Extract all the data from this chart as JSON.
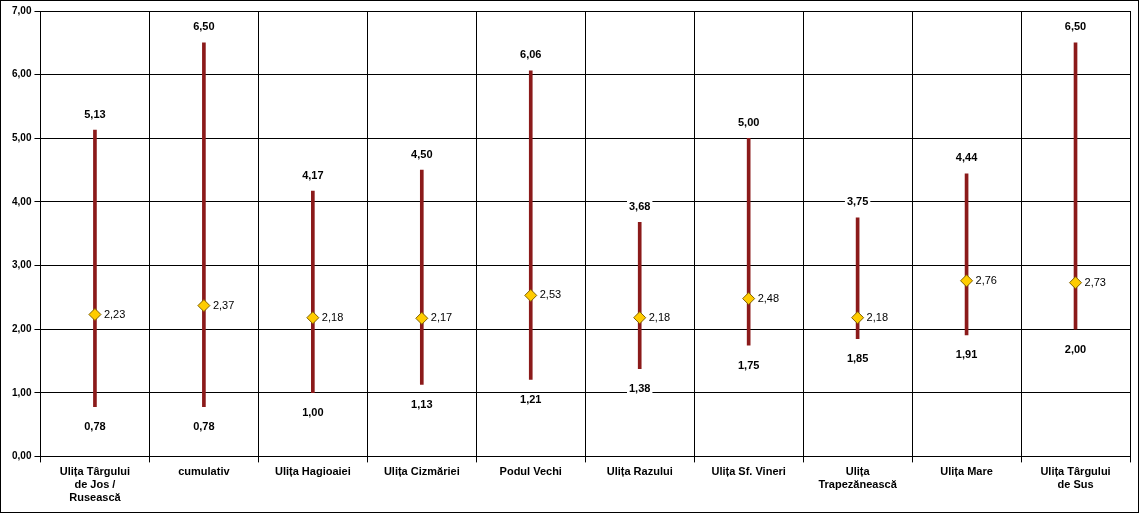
{
  "chart_data": {
    "type": "bar",
    "categories": [
      "Ulița Târgului de Jos / Rusească",
      "cumulativ",
      "Ulița Hagioaiei",
      "Ulița Cizmăriei",
      "Podul Vechi",
      "Ulița Razului",
      "Ulița Sf. Vineri",
      "Ulița Trapezănească",
      "Ulița Mare",
      "Ulița Târgului de Sus"
    ],
    "series": [
      {
        "color": "#8b1a1a",
        "base": [
          0.78,
          0.78,
          1.0,
          1.13,
          1.21,
          1.38,
          1.75,
          1.85,
          1.91,
          2.0
        ],
        "values": [
          4.35,
          5.72,
          3.17,
          3.37,
          4.85,
          2.3,
          3.25,
          1.9,
          2.53,
          4.5
        ]
      },
      {
        "type": "scatter",
        "color": "#ffcc00",
        "marker": "diamond",
        "values": [
          2.23,
          2.37,
          2.18,
          2.17,
          2.53,
          2.18,
          2.48,
          2.18,
          2.76,
          2.73
        ],
        "value_labels": [
          "2,23",
          "2,37",
          "2,18",
          "2,17",
          "2,53",
          "2,18",
          "2,48",
          "2,18",
          "2,76",
          "2,73"
        ]
      }
    ],
    "annotations": [
      {
        "text": "5,13",
        "x": "Ulița Târgului de Jos / Rusească",
        "y": 5.13
      },
      {
        "text": "0,78",
        "x": "Ulița Târgului de Jos / Rusească",
        "y": 0.78
      },
      {
        "text": "6,50",
        "x": "cumulativ",
        "y": 6.5
      },
      {
        "text": "0,78",
        "x": "cumulativ",
        "y": 0.78
      },
      {
        "text": "4,17",
        "x": "Ulița Hagioaiei",
        "y": 4.17
      },
      {
        "text": "1,00",
        "x": "Ulița Hagioaiei",
        "y": 1.0
      },
      {
        "text": "4,50",
        "x": "Ulița Cizmăriei",
        "y": 4.5
      },
      {
        "text": "1,13",
        "x": "Ulița Cizmăriei",
        "y": 1.13
      },
      {
        "text": "6,06",
        "x": "Podul Vechi",
        "y": 6.06
      },
      {
        "text": "1,21",
        "x": "Podul Vechi",
        "y": 1.21
      },
      {
        "text": "3,68",
        "x": "Ulița Razului",
        "y": 3.68
      },
      {
        "text": "1,38",
        "x": "Ulița Razului",
        "y": 1.38
      },
      {
        "text": "5,00",
        "x": "Ulița Sf. Vineri",
        "y": 5.0
      },
      {
        "text": "1,75",
        "x": "Ulița Sf. Vineri",
        "y": 1.75
      },
      {
        "text": "3,75",
        "x": "Ulița Trapezănească",
        "y": 3.75
      },
      {
        "text": "1,85",
        "x": "Ulița Trapezănească",
        "y": 1.85
      },
      {
        "text": "4,44",
        "x": "Ulița Mare",
        "y": 4.44
      },
      {
        "text": "1,91",
        "x": "Ulița Mare",
        "y": 1.91
      },
      {
        "text": "6,50",
        "x": "Ulița Târgului de Sus",
        "y": 6.5
      },
      {
        "text": "2,00",
        "x": "Ulița Târgului de Sus",
        "y": 2.0
      }
    ],
    "ylim": [
      0,
      7
    ],
    "yticks": [
      {
        "value": 0,
        "label": "0,00"
      },
      {
        "value": 1,
        "label": "1,00"
      },
      {
        "value": 2,
        "label": "2,00"
      },
      {
        "value": 3,
        "label": "3,00"
      },
      {
        "value": 4,
        "label": "4,00"
      },
      {
        "value": 5,
        "label": "5,00"
      },
      {
        "value": 6,
        "label": "6,00"
      },
      {
        "value": 7,
        "label": "7,00"
      }
    ],
    "grid": true,
    "legend": false
  }
}
